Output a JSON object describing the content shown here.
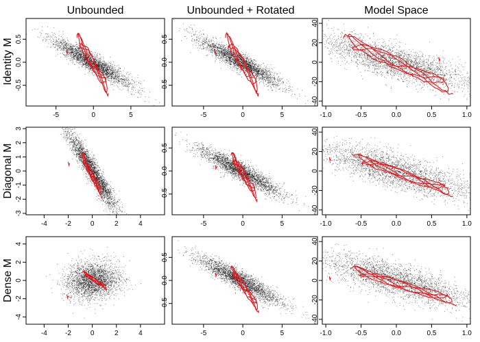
{
  "figure": {
    "column_titles": [
      "Unbounded",
      "Unbounded + Rotated",
      "Model Space"
    ],
    "row_labels": [
      "Identity M",
      "Diagonal M",
      "Dense M"
    ]
  },
  "colors": {
    "points": "#000000",
    "trace": "#e8141a",
    "frame": "#000000"
  },
  "chart_data": [
    {
      "type": "scatter",
      "title": "Unbounded",
      "row": "Identity M",
      "xlim": [
        -9,
        9.5
      ],
      "ylim": [
        -0.95,
        0.95
      ],
      "xticks": [
        -5,
        0,
        5
      ],
      "xtick_labels": [
        "-5",
        "0",
        "5"
      ],
      "yticks": [
        -0.5,
        0,
        0.5
      ],
      "ytick_labels": [
        "-0.5",
        "0.0",
        "0.5"
      ],
      "cloud": {
        "center": [
          -0.3,
          0.0
        ],
        "spread": [
          2.6,
          0.1
        ],
        "slope": -0.09
      },
      "trace": {
        "x_range": [
          -2.2,
          2.0
        ],
        "y_range": [
          0.55,
          -0.6
        ],
        "stray": [
          -3.6,
          0.22
        ]
      }
    },
    {
      "type": "scatter",
      "title": "Unbounded + Rotated",
      "row": "Identity M",
      "xlim": [
        -9,
        9.5
      ],
      "ylim": [
        -0.95,
        0.95
      ],
      "xticks": [
        -5,
        0,
        5
      ],
      "xtick_labels": [
        "-5",
        "0",
        "5"
      ],
      "yticks": [
        -0.5,
        0,
        0.5
      ],
      "ytick_labels": [
        "-0.5",
        "0.0",
        "0.5"
      ],
      "cloud": {
        "center": [
          -0.3,
          0.0
        ],
        "spread": [
          2.6,
          0.1
        ],
        "slope": -0.09
      },
      "trace": {
        "x_range": [
          -2.2,
          2.0
        ],
        "y_range": [
          0.55,
          -0.6
        ],
        "stray": [
          -3.6,
          0.22
        ]
      }
    },
    {
      "type": "scatter",
      "title": "Model Space",
      "row": "Identity M",
      "xlim": [
        -1.05,
        1.05
      ],
      "ylim": [
        -45,
        45
      ],
      "xticks": [
        -1.0,
        -0.5,
        0.0,
        0.5,
        1.0
      ],
      "xtick_labels": [
        "-1.0",
        "-0.5",
        "0.0",
        "0.5",
        "1.0"
      ],
      "yticks": [
        -40,
        -20,
        0,
        20,
        40
      ],
      "ytick_labels": [
        "-40",
        "-20",
        "0",
        "20",
        "40"
      ],
      "cloud": {
        "center": [
          0.0,
          0.0
        ],
        "spread": [
          0.55,
          8.5
        ],
        "slope": -20
      },
      "trace": {
        "x_range": [
          -0.75,
          0.8
        ],
        "y_range": [
          25,
          -28
        ],
        "stray": [
          0.6,
          3
        ]
      }
    },
    {
      "type": "scatter",
      "title": "Unbounded",
      "row": "Diagonal M",
      "xlim": [
        -5.5,
        6
      ],
      "ylim": [
        -3.1,
        3.1
      ],
      "xticks": [
        -4,
        -2,
        0,
        2,
        4
      ],
      "xtick_labels": [
        "-4",
        "-2",
        "0",
        "2",
        "4"
      ],
      "yticks": [
        -3,
        -2,
        -1,
        0,
        1,
        2,
        3
      ],
      "ytick_labels": [
        "-3",
        "-2",
        "-1",
        "0",
        "1",
        "2",
        "3"
      ],
      "cloud": {
        "center": [
          0.0,
          0.0
        ],
        "spread": [
          1.1,
          0.45
        ],
        "slope": -1.3
      },
      "trace": {
        "x_range": [
          -0.9,
          0.8
        ],
        "y_range": [
          1.1,
          -1.6
        ],
        "stray": [
          -2.0,
          0.5
        ]
      }
    },
    {
      "type": "scatter",
      "title": "Unbounded + Rotated",
      "row": "Diagonal M",
      "xlim": [
        -9,
        9.5
      ],
      "ylim": [
        -0.95,
        0.95
      ],
      "xticks": [
        -5,
        0,
        5
      ],
      "xtick_labels": [
        "-5",
        "0",
        "5"
      ],
      "yticks": [
        -0.5,
        0,
        0.5
      ],
      "ytick_labels": [
        "-0.5",
        "0.0",
        "0.5"
      ],
      "cloud": {
        "center": [
          -0.3,
          0.0
        ],
        "spread": [
          2.6,
          0.1
        ],
        "slope": -0.09
      },
      "trace": {
        "x_range": [
          -1.5,
          1.8
        ],
        "y_range": [
          0.35,
          -0.55
        ],
        "stray": [
          -3.5,
          0.08
        ]
      }
    },
    {
      "type": "scatter",
      "title": "Model Space",
      "row": "Diagonal M",
      "xlim": [
        -1.05,
        1.05
      ],
      "ylim": [
        -45,
        45
      ],
      "xticks": [
        -1.0,
        -0.5,
        0.0,
        0.5,
        1.0
      ],
      "xtick_labels": [
        "-1.0",
        "-0.5",
        "0.0",
        "0.5",
        "1.0"
      ],
      "yticks": [
        -40,
        -20,
        0,
        20,
        40
      ],
      "ytick_labels": [
        "-40",
        "-20",
        "0",
        "20",
        "40"
      ],
      "cloud": {
        "center": [
          0.0,
          0.0
        ],
        "spread": [
          0.55,
          8.5
        ],
        "slope": -20
      },
      "trace": {
        "x_range": [
          -0.6,
          0.8
        ],
        "y_range": [
          15,
          -22
        ],
        "stray": [
          -0.95,
          12
        ]
      }
    },
    {
      "type": "scatter",
      "title": "Unbounded",
      "row": "Dense M",
      "xlim": [
        -5.5,
        6
      ],
      "ylim": [
        -4.8,
        4.8
      ],
      "xticks": [
        -4,
        -2,
        0,
        2,
        4
      ],
      "xtick_labels": [
        "-4",
        "-2",
        "0",
        "2",
        "4"
      ],
      "yticks": [
        -4,
        -2,
        0,
        2,
        4
      ],
      "ytick_labels": [
        "-4",
        "-2",
        "0",
        "2",
        "4"
      ],
      "cloud": {
        "center": [
          0.0,
          0.0
        ],
        "spread": [
          1.1,
          1.0
        ],
        "slope": 0.1
      },
      "trace": {
        "x_range": [
          -0.8,
          1.2
        ],
        "y_range": [
          0.9,
          -0.8
        ],
        "stray": [
          -2.1,
          -1.8
        ]
      }
    },
    {
      "type": "scatter",
      "title": "Unbounded + Rotated",
      "row": "Dense M",
      "xlim": [
        -9,
        9.5
      ],
      "ylim": [
        -0.95,
        0.95
      ],
      "xticks": [
        -5,
        0,
        5
      ],
      "xtick_labels": [
        "-5",
        "0",
        "5"
      ],
      "yticks": [
        -0.5,
        0,
        0.5
      ],
      "ytick_labels": [
        "-0.5",
        "0.0",
        "0.5"
      ],
      "cloud": {
        "center": [
          -0.3,
          0.0
        ],
        "spread": [
          2.6,
          0.1
        ],
        "slope": -0.09
      },
      "trace": {
        "x_range": [
          -1.5,
          2.0
        ],
        "y_range": [
          0.25,
          -0.6
        ],
        "stray": [
          -3.5,
          0.12
        ]
      }
    },
    {
      "type": "scatter",
      "title": "Model Space",
      "row": "Dense M",
      "xlim": [
        -1.05,
        1.05
      ],
      "ylim": [
        -45,
        45
      ],
      "xticks": [
        -1.0,
        -0.5,
        0.0,
        0.5,
        1.0
      ],
      "xtick_labels": [
        "-1.0",
        "-0.5",
        "0.0",
        "0.5",
        "1.0"
      ],
      "yticks": [
        -40,
        -20,
        0,
        20,
        40
      ],
      "ytick_labels": [
        "-40",
        "-20",
        "0",
        "20",
        "40"
      ],
      "cloud": {
        "center": [
          0.0,
          0.0
        ],
        "spread": [
          0.55,
          8.5
        ],
        "slope": -20
      },
      "trace": {
        "x_range": [
          -0.65,
          0.85
        ],
        "y_range": [
          12,
          -22
        ],
        "stray": [
          -0.95,
          2
        ]
      }
    }
  ]
}
